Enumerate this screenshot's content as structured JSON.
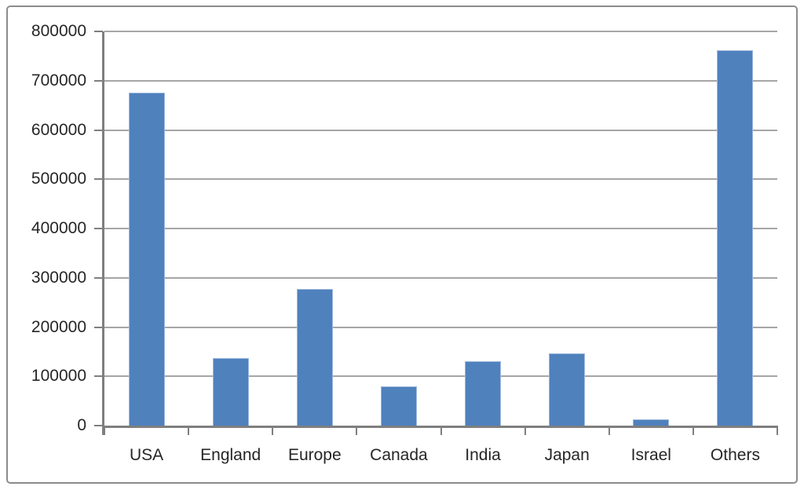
{
  "chart_data": {
    "type": "bar",
    "title": "",
    "xlabel": "",
    "ylabel": "",
    "categories": [
      "USA",
      "England",
      "Europe",
      "Canada",
      "India",
      "Japan",
      "Israel",
      "Others"
    ],
    "values": [
      675000,
      137000,
      277000,
      80000,
      130000,
      146000,
      12000,
      762000
    ],
    "ylim": [
      0,
      800000
    ],
    "ytick_step": 100000,
    "ytick_labels": [
      "800000",
      "700000",
      "600000",
      "500000",
      "400000",
      "300000",
      "200000",
      "100000",
      "0"
    ],
    "grid": true,
    "legend": "none",
    "bar_color": "#4F81BD",
    "bar_edge_color": "#9DB8DC",
    "gridline_color": "#A6A6A6",
    "axis_color": "#7F7F7F",
    "text_color": "#262626",
    "frame_border_color": "#8C8C8C",
    "background_color": "#FFFFFF"
  }
}
